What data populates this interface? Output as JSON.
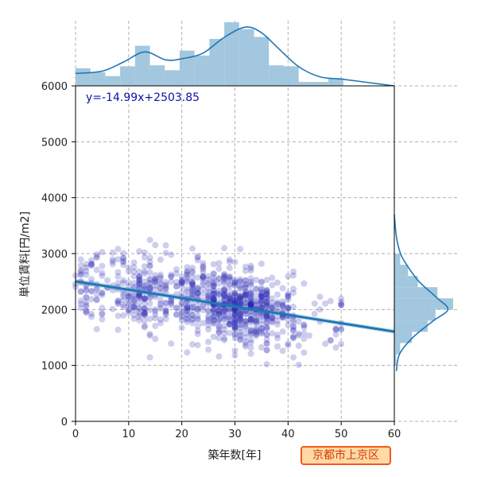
{
  "chart_data": {
    "type": "scatter",
    "title": "",
    "xlabel": "築年数[年]",
    "ylabel": "単位賃料[円/m2]",
    "xlim": [
      0,
      60
    ],
    "ylim": [
      0,
      6000
    ],
    "xticks": [
      0,
      10,
      20,
      30,
      40,
      50,
      60
    ],
    "yticks": [
      0,
      1000,
      2000,
      3000,
      4000,
      5000,
      6000
    ],
    "grid": true,
    "regression": {
      "label": "y=-14.99x+2503.85",
      "slope": -14.99,
      "intercept": 2503.85
    },
    "points_color": "#2020b0",
    "line_color": "#1f77b4",
    "marginal_color": "#9ec4dd",
    "x_histogram": {
      "bin_edges": [
        0,
        2.8,
        5.6,
        8.4,
        11.2,
        14,
        16.8,
        19.6,
        22.4,
        25.2,
        28,
        30.8,
        33.6,
        36.4,
        39.2,
        42,
        44.8,
        47.6,
        50.4
      ],
      "counts": [
        18,
        14,
        10,
        20,
        41,
        21,
        16,
        36,
        31,
        48,
        65,
        58,
        50,
        21,
        20,
        4,
        4,
        8
      ]
    },
    "x_kde": [
      [
        0,
        11
      ],
      [
        5,
        13
      ],
      [
        9,
        21
      ],
      [
        13,
        30
      ],
      [
        17,
        23
      ],
      [
        20,
        24
      ],
      [
        24,
        29
      ],
      [
        28,
        43
      ],
      [
        32,
        52
      ],
      [
        35,
        47
      ],
      [
        38,
        34
      ],
      [
        42,
        17
      ],
      [
        46,
        8
      ],
      [
        50,
        6
      ],
      [
        55,
        3
      ],
      [
        60,
        0
      ]
    ],
    "y_histogram": {
      "bin_edges": [
        1000,
        1200,
        1400,
        1600,
        1800,
        2000,
        2200,
        2400,
        2600,
        2800,
        3000
      ],
      "counts": [
        2,
        6,
        18,
        34,
        42,
        60,
        44,
        24,
        14,
        6
      ]
    },
    "y_kde": [
      [
        900,
        2
      ],
      [
        1200,
        5
      ],
      [
        1500,
        18
      ],
      [
        1800,
        38
      ],
      [
        2000,
        52
      ],
      [
        2200,
        42
      ],
      [
        2500,
        24
      ],
      [
        2800,
        12
      ],
      [
        3000,
        6
      ],
      [
        3300,
        2
      ],
      [
        3700,
        0
      ]
    ],
    "n_points": 1000,
    "point_x_distribution": "matches x_histogram",
    "point_y_scatter_std": 330
  },
  "location_badge": "京都市上京区"
}
